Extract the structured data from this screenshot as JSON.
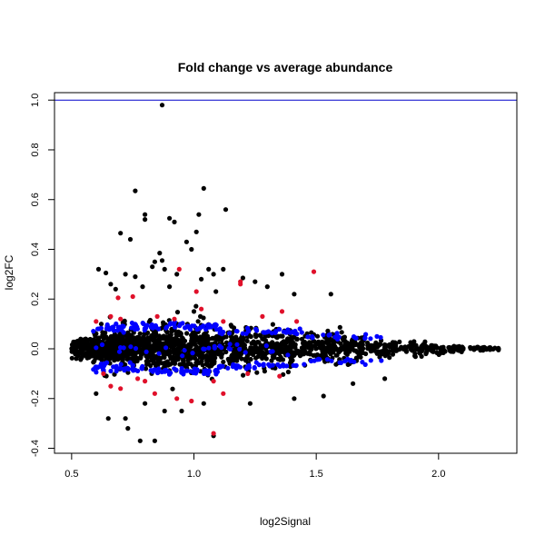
{
  "chart_data": {
    "type": "scatter",
    "title": "Fold change vs average abundance",
    "xlabel": "log2Signal",
    "ylabel": "log2FC",
    "xlim": [
      0.43,
      2.32
    ],
    "ylim": [
      -0.42,
      1.03
    ],
    "xticks": [
      0.5,
      1.0,
      1.5,
      2.0
    ],
    "xtick_labels": [
      "0.5",
      "1.0",
      "1.5",
      "2.0"
    ],
    "yticks": [
      -0.4,
      -0.2,
      0.0,
      0.2,
      0.4,
      0.6,
      0.8,
      1.0
    ],
    "ytick_labels": [
      "-0.4",
      "-0.2",
      "0.0",
      "0.2",
      "0.4",
      "0.6",
      "0.8",
      "1.0"
    ],
    "grid": false,
    "reference_line": {
      "y": 1.0,
      "color": "#0000cc"
    },
    "colors": {
      "black": "#000000",
      "blue": "#0000ff",
      "red": "#e0102a"
    },
    "series": [
      {
        "color": "#000000",
        "points": [
          [
            0.87,
            0.98
          ],
          [
            0.76,
            0.635
          ],
          [
            1.04,
            0.645
          ],
          [
            0.8,
            0.54
          ],
          [
            0.8,
            0.52
          ],
          [
            1.13,
            0.56
          ],
          [
            0.9,
            0.525
          ],
          [
            0.92,
            0.51
          ],
          [
            0.7,
            0.465
          ],
          [
            0.74,
            0.44
          ],
          [
            1.02,
            0.54
          ],
          [
            1.01,
            0.47
          ],
          [
            0.97,
            0.43
          ],
          [
            0.99,
            0.4
          ],
          [
            0.86,
            0.385
          ],
          [
            0.87,
            0.355
          ],
          [
            0.84,
            0.35
          ],
          [
            0.83,
            0.33
          ],
          [
            0.88,
            0.32
          ],
          [
            0.93,
            0.3
          ],
          [
            1.06,
            0.32
          ],
          [
            1.12,
            0.32
          ],
          [
            0.61,
            0.32
          ],
          [
            0.64,
            0.305
          ],
          [
            0.72,
            0.3
          ],
          [
            0.76,
            0.29
          ],
          [
            1.08,
            0.3
          ],
          [
            1.03,
            0.28
          ],
          [
            1.2,
            0.285
          ],
          [
            1.36,
            0.3
          ],
          [
            1.25,
            0.27
          ],
          [
            1.3,
            0.25
          ],
          [
            1.56,
            0.22
          ],
          [
            1.41,
            0.22
          ],
          [
            0.79,
            0.25
          ],
          [
            0.68,
            0.24
          ],
          [
            0.66,
            0.26
          ],
          [
            0.9,
            0.25
          ],
          [
            1.09,
            0.23
          ],
          [
            0.78,
            -0.37
          ],
          [
            0.73,
            -0.32
          ],
          [
            0.84,
            -0.37
          ],
          [
            1.08,
            -0.35
          ],
          [
            0.72,
            -0.28
          ],
          [
            0.65,
            -0.28
          ],
          [
            0.95,
            -0.25
          ],
          [
            1.04,
            -0.22
          ],
          [
            1.23,
            -0.22
          ],
          [
            1.41,
            -0.2
          ],
          [
            1.53,
            -0.19
          ],
          [
            1.78,
            -0.12
          ],
          [
            1.65,
            -0.14
          ],
          [
            0.6,
            -0.18
          ],
          [
            0.8,
            -0.22
          ],
          [
            0.88,
            -0.25
          ]
        ],
        "clouds": [
          [
            0.5,
            0.6,
            -0.05,
            0.06,
            110
          ],
          [
            0.58,
            0.8,
            -0.08,
            0.09,
            300
          ],
          [
            0.62,
            0.76,
            -0.15,
            0.17,
            90
          ],
          [
            0.8,
            1.1,
            -0.11,
            0.12,
            340
          ],
          [
            0.82,
            1.08,
            -0.2,
            0.22,
            120
          ],
          [
            1.1,
            1.4,
            -0.1,
            0.11,
            240
          ],
          [
            1.15,
            1.4,
            -0.16,
            0.16,
            60
          ],
          [
            1.4,
            1.7,
            -0.07,
            0.08,
            180
          ],
          [
            1.45,
            1.68,
            -0.12,
            0.12,
            40
          ],
          [
            1.7,
            1.95,
            -0.05,
            0.05,
            130
          ],
          [
            1.95,
            2.1,
            -0.025,
            0.025,
            70
          ],
          [
            2.1,
            2.25,
            -0.01,
            0.012,
            30
          ]
        ]
      },
      {
        "color": "#0000ff",
        "points": [],
        "clouds": [
          [
            0.58,
            0.8,
            0.06,
            0.11,
            40
          ],
          [
            0.58,
            0.8,
            -0.1,
            -0.05,
            40
          ],
          [
            0.8,
            1.1,
            0.07,
            0.11,
            45
          ],
          [
            0.8,
            1.1,
            -0.11,
            -0.07,
            45
          ],
          [
            1.1,
            1.45,
            0.05,
            0.09,
            35
          ],
          [
            1.1,
            1.45,
            -0.09,
            -0.05,
            35
          ],
          [
            1.45,
            1.8,
            0.03,
            0.07,
            20
          ],
          [
            1.45,
            1.8,
            -0.07,
            -0.03,
            20
          ],
          [
            0.6,
            1.4,
            -0.04,
            0.04,
            30
          ]
        ]
      },
      {
        "color": "#e0102a",
        "points": [
          [
            0.69,
            0.205
          ],
          [
            0.75,
            0.21
          ],
          [
            0.94,
            0.32
          ],
          [
            1.01,
            0.23
          ],
          [
            1.19,
            0.26
          ],
          [
            1.19,
            0.27
          ],
          [
            1.49,
            0.31
          ],
          [
            0.6,
            0.11
          ],
          [
            0.66,
            0.13
          ],
          [
            0.7,
            0.12
          ],
          [
            0.85,
            0.13
          ],
          [
            0.92,
            0.12
          ],
          [
            1.03,
            0.16
          ],
          [
            1.12,
            0.11
          ],
          [
            1.28,
            0.13
          ],
          [
            1.36,
            0.15
          ],
          [
            1.42,
            0.11
          ],
          [
            0.66,
            -0.15
          ],
          [
            0.7,
            -0.16
          ],
          [
            0.8,
            -0.13
          ],
          [
            0.84,
            -0.18
          ],
          [
            0.93,
            -0.2
          ],
          [
            0.99,
            -0.21
          ],
          [
            1.08,
            -0.13
          ],
          [
            1.12,
            -0.18
          ],
          [
            1.22,
            -0.1
          ],
          [
            1.35,
            -0.11
          ],
          [
            1.08,
            -0.34
          ],
          [
            0.63,
            -0.1
          ],
          [
            0.77,
            -0.12
          ]
        ],
        "clouds": []
      }
    ]
  }
}
